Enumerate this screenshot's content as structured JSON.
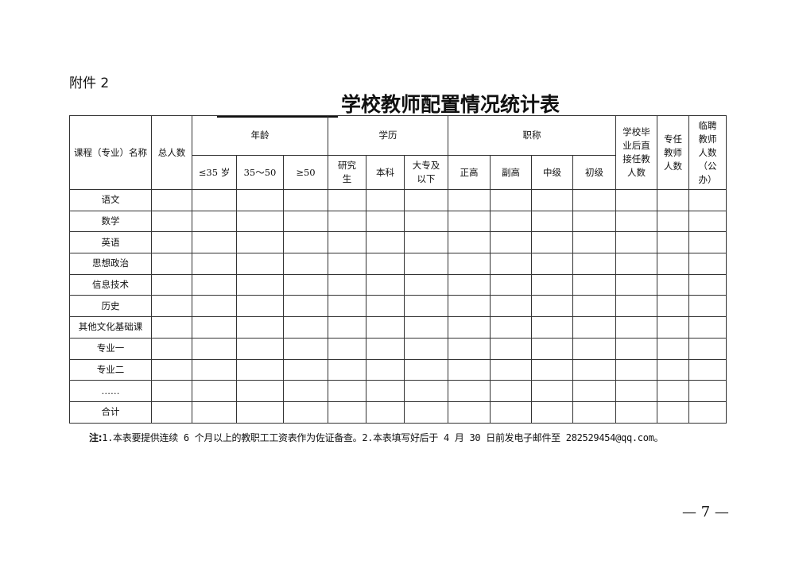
{
  "attachment": "附件 2",
  "title": "学校教师配置情况统计表",
  "headers": {
    "course": "课程（专业）名称",
    "total": "总人数",
    "age": "年龄",
    "education": "学历",
    "rank": "职称",
    "grad_direct": "学校毕业后直接任教人数",
    "fulltime": "专任教师人数",
    "temp": "临聘教师人数（公办）",
    "age_sub": [
      "≤35 岁",
      "35～50",
      "≥50"
    ],
    "edu_sub": [
      "研究生",
      "本科",
      "大专及以下"
    ],
    "rank_sub": [
      "正高",
      "副高",
      "中级",
      "初级"
    ]
  },
  "rows": [
    "语文",
    "数学",
    "英语",
    "思想政治",
    "信息技术",
    "历史",
    "其他文化基础课",
    "专业一",
    "专业二",
    "……",
    "合计"
  ],
  "note_label": "注:",
  "note": "1.本表要提供连续 6 个月以上的教职工工资表作为佐证备查。2.本表填写好后于 4 月 30 日前发电子邮件至 282529454@qq.com。",
  "page_number": "— 7 —"
}
